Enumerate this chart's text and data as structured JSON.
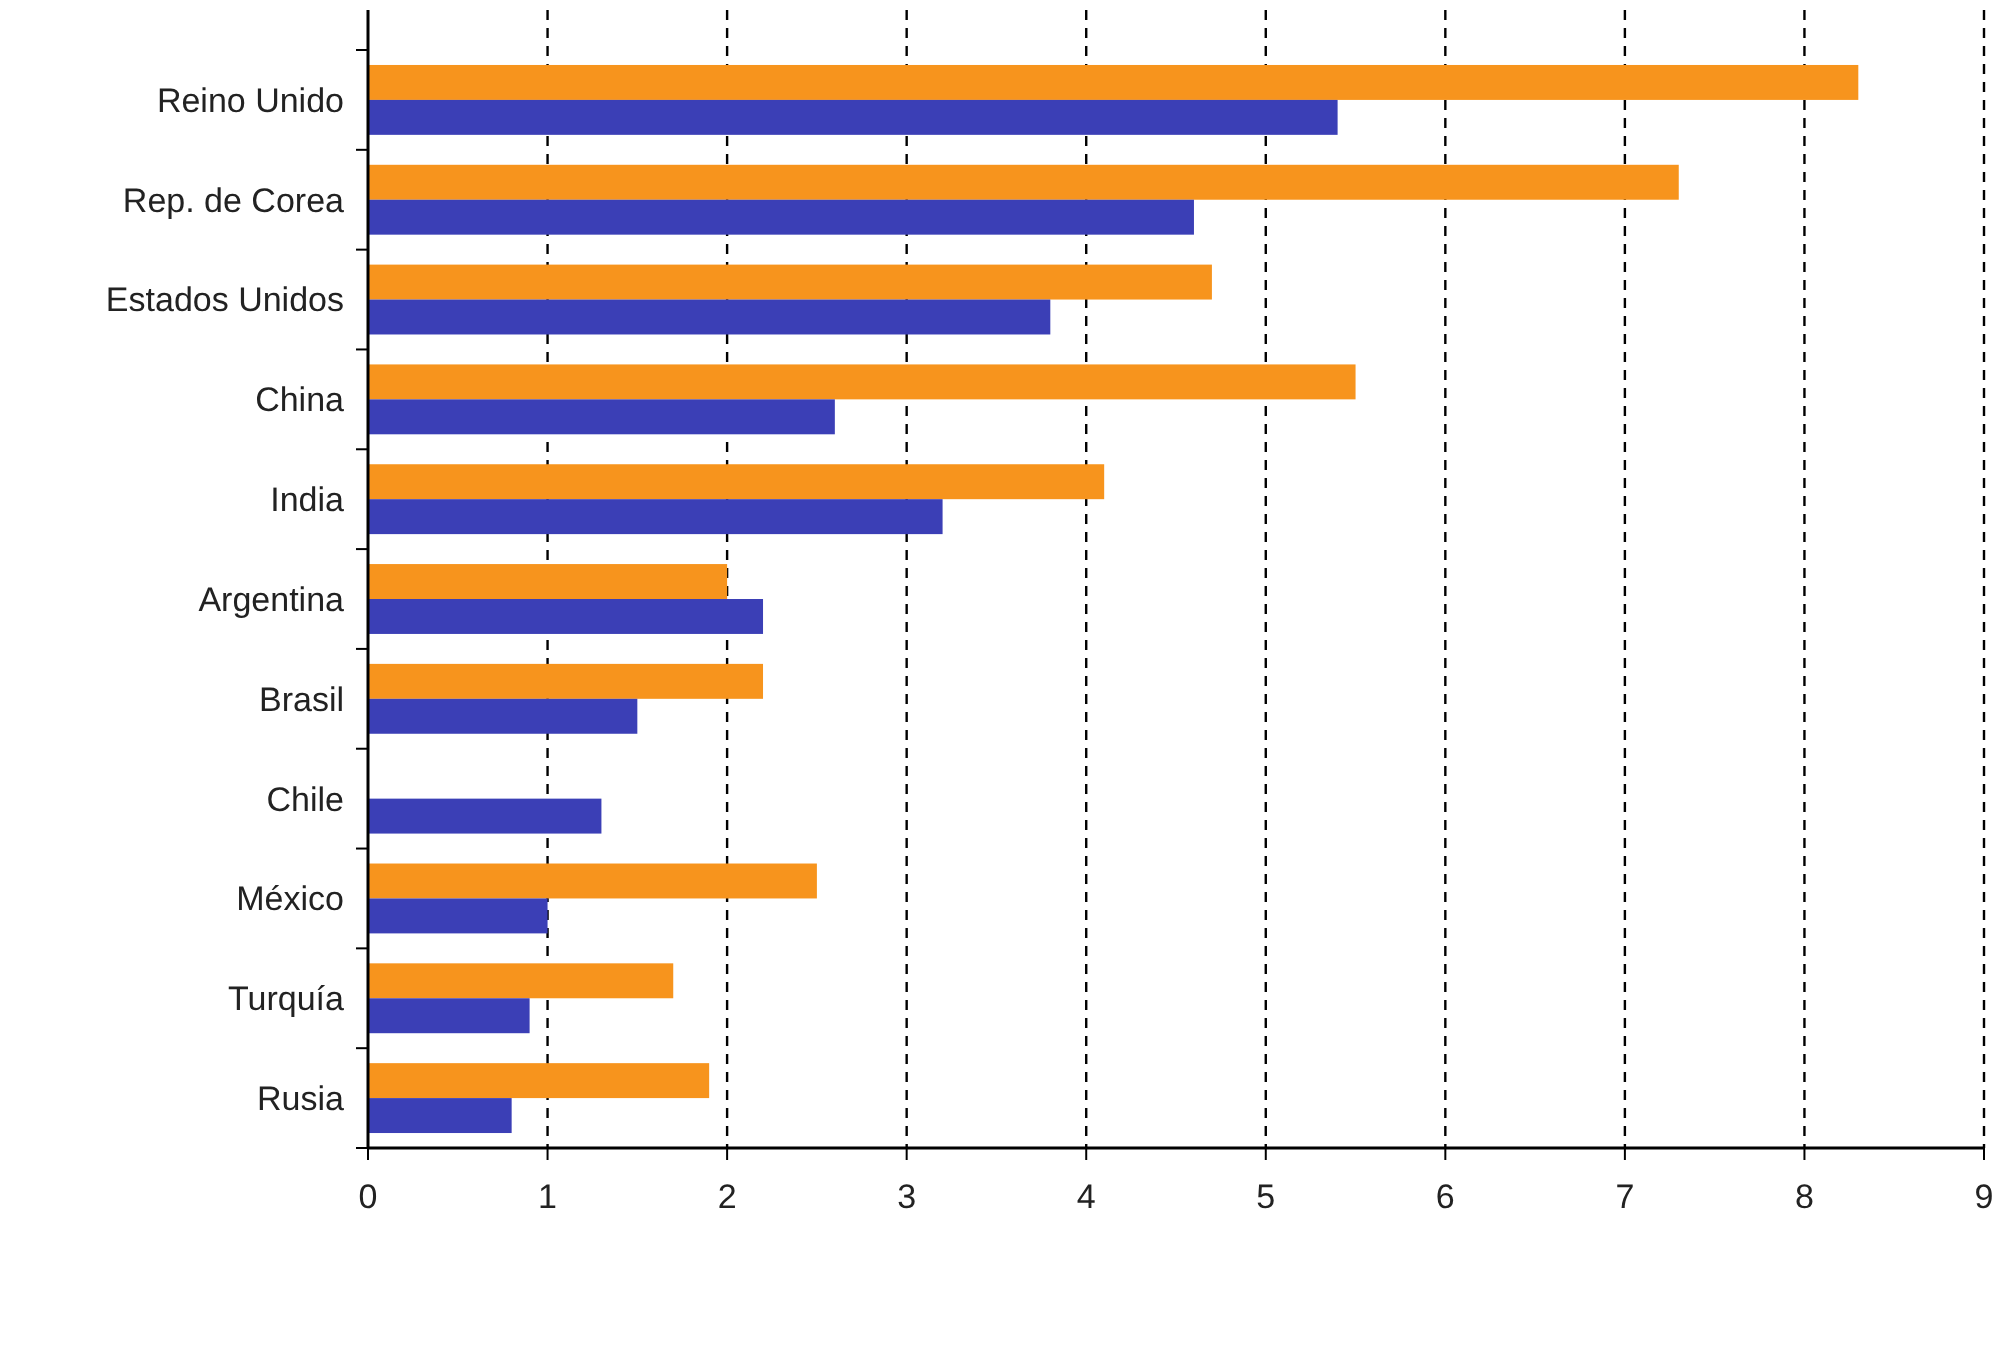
{
  "chart_data": {
    "type": "bar",
    "orientation": "horizontal",
    "categories": [
      "Reino Unido",
      "Rep. de Corea",
      "Estados Unidos",
      "China",
      "India",
      "Argentina",
      "Brasil",
      "Chile",
      "México",
      "Turquía",
      "Rusia"
    ],
    "series": [
      {
        "color": "#f7941d",
        "values": [
          8.3,
          7.3,
          4.7,
          5.5,
          4.1,
          2.0,
          2.2,
          null,
          2.5,
          1.7,
          1.9
        ]
      },
      {
        "color": "#3b3fb6",
        "values": [
          5.4,
          4.6,
          3.8,
          2.6,
          3.2,
          2.2,
          1.5,
          1.3,
          1.0,
          0.9,
          0.8
        ]
      }
    ],
    "xlim": [
      0,
      9
    ],
    "xticks": [
      0,
      1,
      2,
      3,
      4,
      5,
      6,
      7,
      8,
      9
    ],
    "grid": "x",
    "line_style": "dashed"
  }
}
